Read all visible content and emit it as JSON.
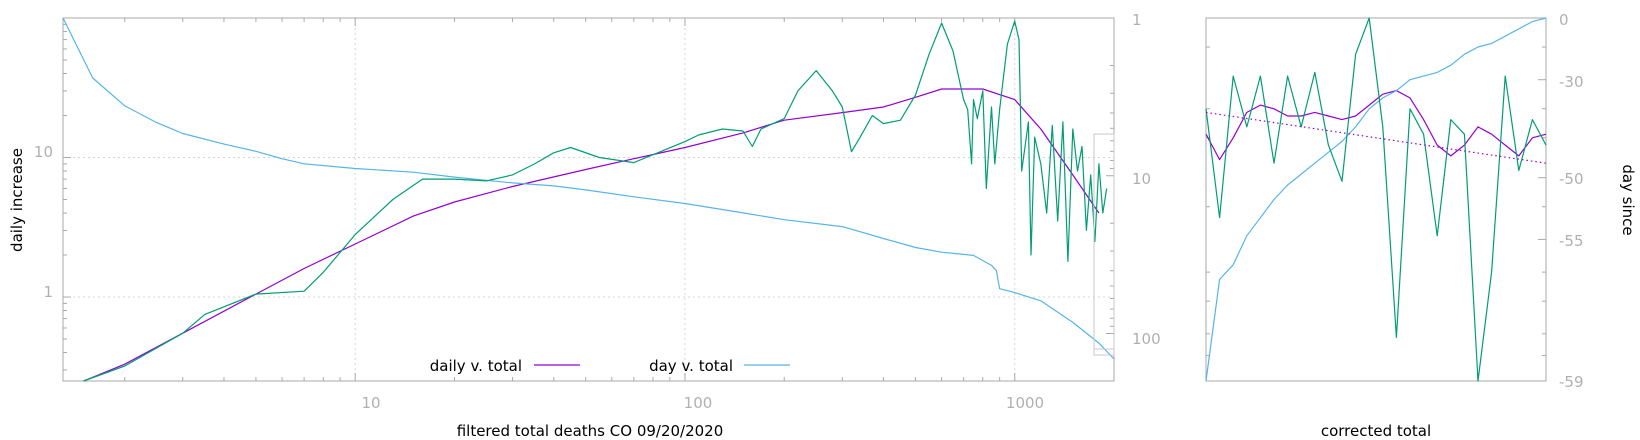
{
  "colors": {
    "daily_v_total": "#9400d3",
    "day_v_total": "#56b4e9",
    "daily_raw": "#009e73",
    "frame": "#a9a9a9",
    "grid": "#d4d4d4",
    "tick_text": "#b0b0b0",
    "title_text": "#000000"
  },
  "chart_data": [
    {
      "type": "line",
      "xlabel": "filtered total deaths CO 09/20/2020",
      "ylabel": "daily increase",
      "y2label": "",
      "xscale": "log",
      "yscale": "log",
      "y2scale": "log-reversed",
      "xlim": [
        1.3,
        2000
      ],
      "ylim": [
        0.25,
        100
      ],
      "y2lim": [
        1,
        200
      ],
      "xticks": [
        "10",
        "100",
        "1000"
      ],
      "yticks": [
        "1",
        "10"
      ],
      "y2ticks": [
        "1",
        "10",
        "100"
      ],
      "grid": true,
      "legend_position": "bottom-center",
      "series": [
        {
          "name": "daily v. total",
          "axis": "left",
          "x": [
            1.5,
            2,
            3,
            5,
            7,
            10,
            15,
            20,
            30,
            50,
            70,
            100,
            150,
            200,
            300,
            400,
            500,
            600,
            800,
            1000,
            1200,
            1500,
            1800
          ],
          "y": [
            0.25,
            0.33,
            0.55,
            1.05,
            1.6,
            2.4,
            3.8,
            4.8,
            6.2,
            8.2,
            9.8,
            11.8,
            15,
            18.5,
            21,
            23,
            27,
            31,
            31,
            26,
            16,
            7.5,
            4
          ]
        },
        {
          "name": "day v. total",
          "axis": "right",
          "x": [
            1.3,
            1.6,
            2,
            2.5,
            3,
            4,
            5,
            6,
            7,
            10,
            15,
            20,
            30,
            40,
            50,
            70,
            100,
            150,
            200,
            300,
            400,
            500,
            600,
            750,
            850,
            880,
            900,
            1000,
            1200,
            1500,
            1800,
            2000
          ],
          "y": [
            1,
            2.4,
            3.6,
            4.6,
            5.4,
            6.3,
            7,
            7.8,
            8.4,
            9,
            9.5,
            10.2,
            11.1,
            11.6,
            12.3,
            13.6,
            15,
            17.2,
            19,
            21,
            25,
            28.5,
            30.5,
            32,
            37,
            40,
            52,
            55,
            62,
            85,
            115,
            145
          ]
        },
        {
          "name": "",
          "axis": "left",
          "x": [
            1.5,
            2,
            3,
            3.5,
            5,
            7,
            8,
            10,
            13,
            16,
            20,
            25,
            30,
            35,
            40,
            45,
            55,
            70,
            100,
            110,
            130,
            150,
            160,
            170,
            200,
            220,
            250,
            280,
            300,
            320,
            340,
            370,
            400,
            450,
            500,
            550,
            600,
            650,
            700,
            720,
            740,
            750,
            770,
            800,
            820,
            850,
            870,
            900,
            950,
            1000,
            1030,
            1050,
            1100,
            1120,
            1150,
            1200,
            1250,
            1300,
            1350,
            1400,
            1450,
            1500,
            1550,
            1600,
            1650,
            1700,
            1750,
            1800,
            1850,
            1900
          ],
          "y": [
            0.25,
            0.32,
            0.55,
            0.75,
            1.05,
            1.1,
            1.5,
            2.8,
            5,
            7,
            7,
            6.8,
            7.5,
            9,
            10.8,
            11.8,
            10,
            9.2,
            13,
            14.5,
            16,
            15.5,
            12,
            16,
            19,
            30,
            42,
            30,
            23,
            11,
            14,
            20,
            17.5,
            18.5,
            28,
            55,
            92,
            58,
            26,
            22,
            9,
            26,
            19,
            30,
            6,
            23,
            9,
            22,
            65,
            95,
            70,
            8,
            18,
            2,
            14,
            9,
            4,
            17,
            3.5,
            18,
            1.8,
            16,
            8,
            12,
            3,
            7.5,
            2.5,
            9,
            4,
            6
          ]
        }
      ]
    },
    {
      "type": "line",
      "xlabel": "corrected total",
      "ylabel": "",
      "y2label": "day since",
      "xticks": [],
      "y2ticks": [
        "0",
        "-30",
        "-50",
        "-55",
        "-59"
      ],
      "y2_tick_fraction": [
        0,
        0.17,
        0.44,
        0.61,
        1
      ],
      "series": [
        {
          "name": "",
          "values_fraction_from_top": [
            0.32,
            0.39,
            0.33,
            0.26,
            0.24,
            0.25,
            0.27,
            0.27,
            0.26,
            0.27,
            0.28,
            0.27,
            0.24,
            0.21,
            0.2,
            0.22,
            0.28,
            0.35,
            0.38,
            0.35,
            0.3,
            0.32,
            0.35,
            0.38,
            0.33,
            0.32
          ]
        },
        {
          "name": "",
          "values_fraction_from_top": [
            1,
            0.72,
            0.68,
            0.6,
            0.55,
            0.5,
            0.46,
            0.43,
            0.4,
            0.37,
            0.34,
            0.3,
            0.25,
            0.22,
            0.2,
            0.17,
            0.16,
            0.15,
            0.13,
            0.1,
            0.08,
            0.07,
            0.05,
            0.03,
            0.01,
            0
          ]
        },
        {
          "name": "",
          "values_fraction_from_top": [
            0.25,
            0.55,
            0.16,
            0.3,
            0.16,
            0.4,
            0.16,
            0.3,
            0.15,
            0.35,
            0.45,
            0.1,
            0,
            0.3,
            0.88,
            0.25,
            0.32,
            0.6,
            0.28,
            0.32,
            1,
            0.7,
            0.16,
            0.42,
            0.28,
            0.35
          ]
        },
        {
          "name": "",
          "style": "dotted",
          "values_fraction_from_top": [
            0.26,
            0.4
          ]
        }
      ]
    }
  ]
}
